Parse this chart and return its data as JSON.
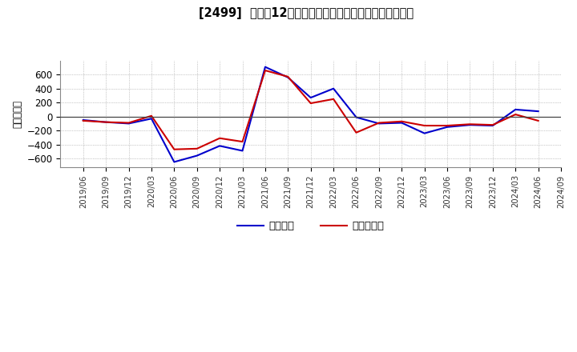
{
  "title": "[2499]  利益だ12か月移動合計の対前年同期増減額の推移",
  "ylabel": "（百万円）",
  "background_color": "#ffffff",
  "plot_bg_color": "#ffffff",
  "grid_color": "#aaaaaa",
  "ylim": [
    -720,
    800
  ],
  "yticks": [
    -600,
    -400,
    -200,
    0,
    200,
    400,
    600
  ],
  "legend_labels": [
    "経常利益",
    "当期純利益"
  ],
  "line_colors": [
    "#0000cc",
    "#cc0000"
  ],
  "dates": [
    "2019/06",
    "2019/09",
    "2019/12",
    "2020/03",
    "2020/06",
    "2020/09",
    "2020/12",
    "2021/03",
    "2021/06",
    "2021/09",
    "2021/12",
    "2022/03",
    "2022/06",
    "2022/09",
    "2022/12",
    "2023/03",
    "2023/06",
    "2023/09",
    "2023/12",
    "2024/03",
    "2024/06",
    "2024/09"
  ],
  "keijo_rieki": [
    -50,
    -80,
    -100,
    -30,
    -650,
    -560,
    -420,
    -490,
    710,
    560,
    270,
    400,
    -10,
    -100,
    -90,
    -240,
    -150,
    -120,
    -130,
    100,
    75,
    null
  ],
  "touki_junrieki": [
    -60,
    -80,
    -90,
    10,
    -470,
    -460,
    -310,
    -360,
    660,
    570,
    190,
    250,
    -230,
    -90,
    -70,
    -130,
    -130,
    -110,
    -120,
    30,
    -60,
    null
  ]
}
